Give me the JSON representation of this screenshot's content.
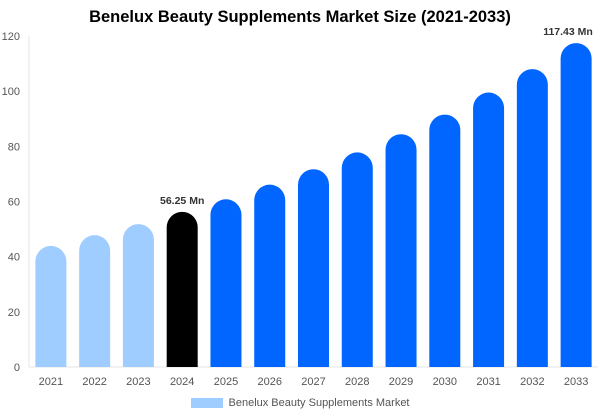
{
  "chart_data": {
    "type": "bar",
    "title": "Benelux Beauty Supplements Market Size (2021-2033)",
    "categories": [
      "2021",
      "2022",
      "2023",
      "2024",
      "2025",
      "2026",
      "2027",
      "2028",
      "2029",
      "2030",
      "2031",
      "2032",
      "2033"
    ],
    "series": [
      {
        "name": "Benelux Beauty Supplements Market",
        "values": [
          43.9,
          47.8,
          51.8,
          56.25,
          60.8,
          66.1,
          71.7,
          77.8,
          84.4,
          91.5,
          99.5,
          108.0,
          117.43
        ]
      }
    ],
    "bar_colors": [
      "#a0cdff",
      "#a0cdff",
      "#a0cdff",
      "#000000",
      "#0066ff",
      "#0066ff",
      "#0066ff",
      "#0066ff",
      "#0066ff",
      "#0066ff",
      "#0066ff",
      "#0066ff",
      "#0066ff"
    ],
    "data_labels": {
      "3": "56.25 Mn",
      "12": "117.43 Mn"
    },
    "yticks": [
      0,
      20,
      40,
      60,
      80,
      100,
      120
    ],
    "ylim": [
      0,
      120
    ],
    "xlabel": "",
    "ylabel": "",
    "grid": false,
    "legend_placement": "bottom"
  }
}
